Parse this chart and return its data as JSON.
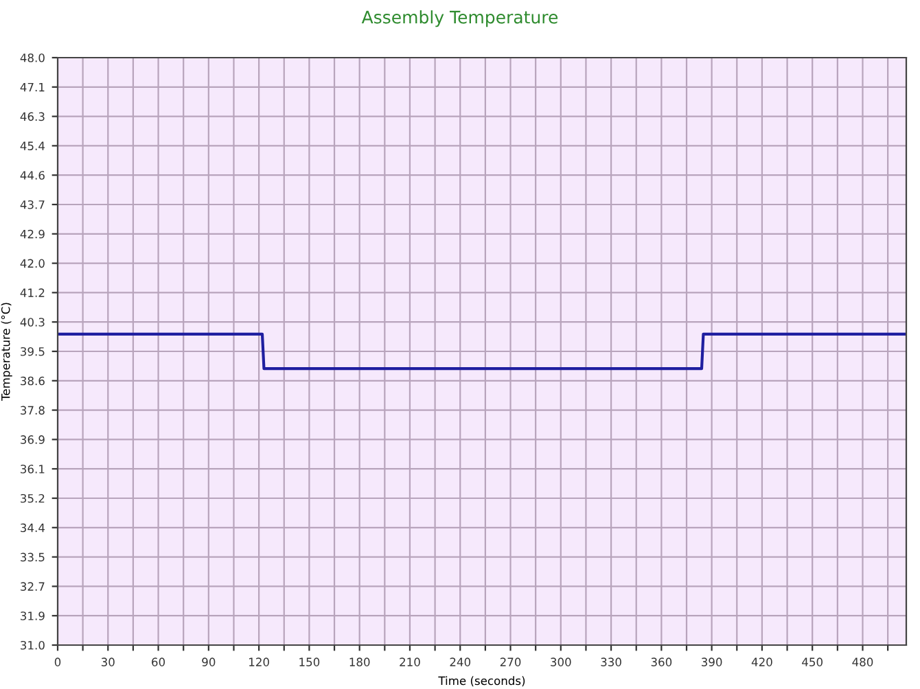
{
  "chart_data": {
    "type": "line",
    "title": "Assembly Temperature",
    "xlabel": "Time (seconds)",
    "ylabel": "Temperature (°C)",
    "x": [
      0,
      122,
      122.5,
      123,
      384,
      385,
      506
    ],
    "series": [
      {
        "color": "#1f1fa0",
        "values": [
          40,
          40,
          39.5,
          39,
          39,
          40,
          40
        ]
      }
    ],
    "xlim": [
      0,
      506
    ],
    "ylim": [
      31,
      48
    ],
    "xticks": [
      0,
      {
        "value": 15,
        "label": null
      },
      30,
      {
        "value": 45,
        "label": null
      },
      60,
      {
        "value": 75,
        "label": null
      },
      90,
      {
        "value": 105,
        "label": null
      },
      120,
      {
        "value": 135,
        "label": null
      },
      150,
      {
        "value": 165,
        "label": null
      },
      180,
      {
        "value": 195,
        "label": null
      },
      210,
      {
        "value": 225,
        "label": null
      },
      240,
      {
        "value": 255,
        "label": null
      },
      270,
      {
        "value": 285,
        "label": null
      },
      300,
      {
        "value": 315,
        "label": null
      },
      330,
      {
        "value": 345,
        "label": null
      },
      360,
      {
        "value": 375,
        "label": null
      },
      390,
      {
        "value": 405,
        "label": null
      },
      420,
      {
        "value": 435,
        "label": null
      },
      450,
      {
        "value": 465,
        "label": null
      },
      480,
      {
        "value": 495,
        "label": null
      }
    ],
    "yticks": [
      {
        "value": 31,
        "label": "31.0"
      },
      {
        "value": 31.85,
        "label": "31.9"
      },
      {
        "value": 32.7,
        "label": "32.7"
      },
      {
        "value": 33.55,
        "label": "33.5"
      },
      {
        "value": 34.4,
        "label": "34.4"
      },
      {
        "value": 35.25,
        "label": "35.2"
      },
      {
        "value": 36.1,
        "label": "36.1"
      },
      {
        "value": 36.95,
        "label": "36.9"
      },
      {
        "value": 37.8,
        "label": "37.8"
      },
      {
        "value": 38.65,
        "label": "38.6"
      },
      {
        "value": 39.5,
        "label": "39.5"
      },
      {
        "value": 40.35,
        "label": "40.3"
      },
      {
        "value": 41.2,
        "label": "41.2"
      },
      {
        "value": 42.05,
        "label": "42.0"
      },
      {
        "value": 42.9,
        "label": "42.9"
      },
      {
        "value": 43.75,
        "label": "43.7"
      },
      {
        "value": 44.6,
        "label": "44.6"
      },
      {
        "value": 45.45,
        "label": "45.4"
      },
      {
        "value": 46.3,
        "label": "46.3"
      },
      {
        "value": 47.15,
        "label": "47.1"
      },
      {
        "value": 48,
        "label": "48.0"
      }
    ],
    "grid": true,
    "line_style": "solid",
    "marker": "none"
  }
}
